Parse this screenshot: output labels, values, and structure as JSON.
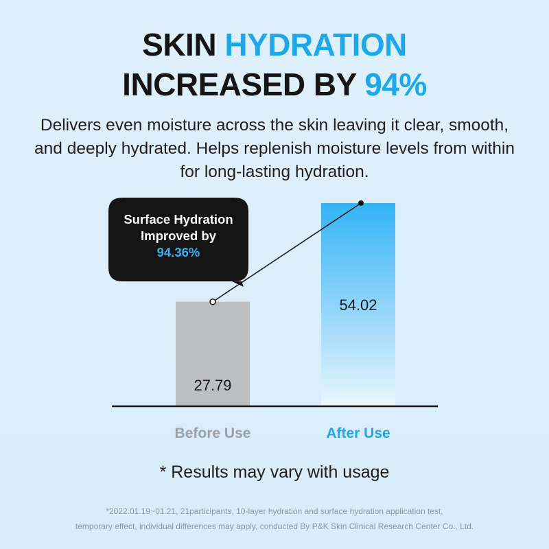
{
  "headline": {
    "line1_part1": "SKIN ",
    "line1_accent": "HYDRATION",
    "line2_part1": "INCREASED BY ",
    "line2_accent": "94%"
  },
  "description": "Delivers even moisture across the skin leaving it clear, smooth, and deeply hydrated. Helps replenish moisture levels from within for long-lasting hydration.",
  "callout": {
    "line1": "Surface Hydration",
    "line2": "Improved by",
    "value": "94.36%"
  },
  "note": "* Results may vary with usage",
  "footnote": {
    "line1": "*2022.01.19~01.21, 21participants, 10-layer hydration and surface hydration application test,",
    "line2": "temporary effect, individual differences may apply, conducted By P&K Skin Clinical Research Center Co., Ltd."
  },
  "colors": {
    "accent": "#1aa8ef",
    "before_bar": "#bdbfc3",
    "after_bar_top": "#33b3f5",
    "after_bar_bottom": "#eaf6fd",
    "callout_bg": "#141414"
  },
  "chart_data": {
    "type": "bar",
    "categories": [
      "Before Use",
      "After Use"
    ],
    "values": [
      27.79,
      54.02
    ],
    "value_labels": [
      "27.79",
      "54.02"
    ],
    "category_colors": [
      "#9aa0a6",
      "#1aa8ef"
    ],
    "ylim": [
      0,
      54.02
    ],
    "grid": false,
    "trend_line": true
  }
}
